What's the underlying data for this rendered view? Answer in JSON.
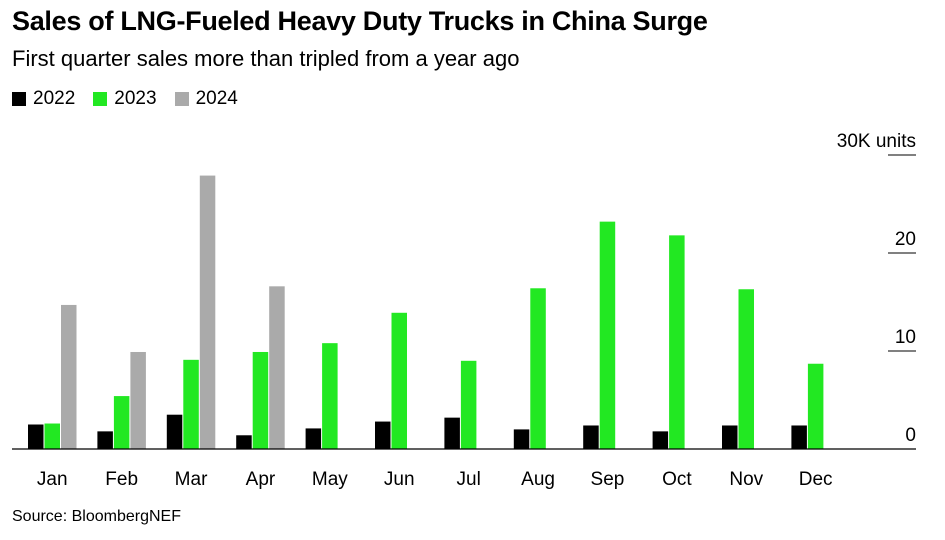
{
  "header": {
    "title": "Sales of LNG-Fueled Heavy Duty Trucks in China Surge",
    "subtitle": "First quarter sales more than tripled from a year ago"
  },
  "footer": {
    "source": "Source: BloombergNEF"
  },
  "chart_data": {
    "type": "bar",
    "title": "Sales of LNG-Fueled Heavy Duty Trucks in China Surge",
    "subtitle": "First quarter sales more than tripled from a year ago",
    "xlabel": "",
    "ylabel": "",
    "unit_label": "30K units",
    "categories": [
      "Jan",
      "Feb",
      "Mar",
      "Apr",
      "May",
      "Jun",
      "Jul",
      "Aug",
      "Sep",
      "Oct",
      "Nov",
      "Dec"
    ],
    "series": [
      {
        "name": "2022",
        "color": "#000000",
        "values": [
          2.5,
          1.8,
          3.5,
          1.4,
          2.1,
          2.8,
          3.2,
          2.0,
          2.4,
          1.8,
          2.4,
          2.4
        ]
      },
      {
        "name": "2023",
        "color": "#22e822",
        "values": [
          2.6,
          5.4,
          9.1,
          9.9,
          10.8,
          13.9,
          9.0,
          16.4,
          23.2,
          21.8,
          16.3,
          8.7
        ]
      },
      {
        "name": "2024",
        "color": "#aaaaaa",
        "values": [
          14.7,
          9.9,
          27.9,
          16.6,
          null,
          null,
          null,
          null,
          null,
          null,
          null,
          null
        ]
      }
    ],
    "ylim": [
      0,
      30
    ],
    "yticks": [
      {
        "value": 0,
        "label": "0"
      },
      {
        "value": 10,
        "label": "10"
      },
      {
        "value": 20,
        "label": "20"
      },
      {
        "value": 30,
        "label": "30K units"
      }
    ],
    "legend_position": "top-left",
    "grid": false
  }
}
